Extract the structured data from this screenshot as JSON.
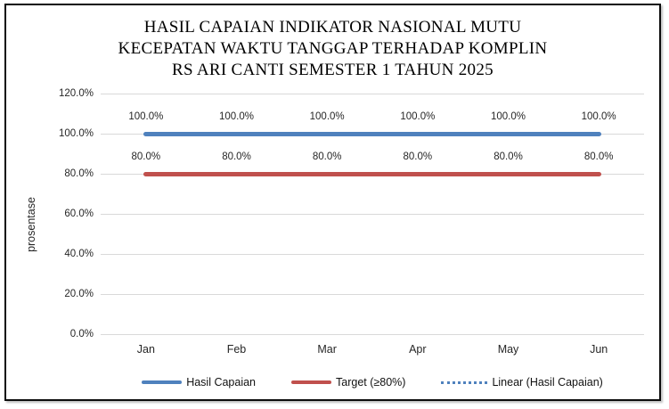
{
  "window": {
    "background": "#ffffff",
    "frame_border_color": "#0c0c0c"
  },
  "chart_data": {
    "type": "line",
    "title_lines": [
      "HASIL CAPAIAN INDIKATOR NASIONAL MUTU",
      "KECEPATAN WAKTU TANGGAP TERHADAP KOMPLIN",
      "RS ARI CANTI SEMESTER 1 TAHUN 2025"
    ],
    "categories": [
      "Jan",
      "Feb",
      "Mar",
      "Apr",
      "May",
      "Jun"
    ],
    "series": [
      {
        "name": "Hasil Capaian",
        "color": "#4F81BD",
        "dash": "solid",
        "values": [
          100,
          100,
          100,
          100,
          100,
          100
        ],
        "point_labels": [
          "100.0%",
          "100.0%",
          "100.0%",
          "100.0%",
          "100.0%",
          "100.0%"
        ]
      },
      {
        "name": "Target (≥80%)",
        "color": "#C0504D",
        "dash": "solid",
        "values": [
          80,
          80,
          80,
          80,
          80,
          80
        ],
        "point_labels": [
          "80.0%",
          "80.0%",
          "80.0%",
          "80.0%",
          "80.0%",
          "80.0%"
        ]
      }
    ],
    "legend": [
      {
        "label": "Hasil Capaian",
        "color": "#4F81BD",
        "dash": "solid"
      },
      {
        "label": "Target (≥80%)",
        "color": "#C0504D",
        "dash": "solid"
      },
      {
        "label": "Linear (Hasil Capaian)",
        "color": "#4F81BD",
        "dash": "dotted"
      }
    ],
    "xlabel": "",
    "ylabel": "prosentase",
    "ylim": [
      0,
      120
    ],
    "ytick_step": 20,
    "ytick_labels": [
      "0.0%",
      "20.0%",
      "40.0%",
      "60.0%",
      "80.0%",
      "100.0%",
      "120.0%"
    ],
    "grid": true,
    "gridline_color": "#D9D9D9",
    "axis_text_color": "#262626",
    "legend_position": "bottom"
  }
}
